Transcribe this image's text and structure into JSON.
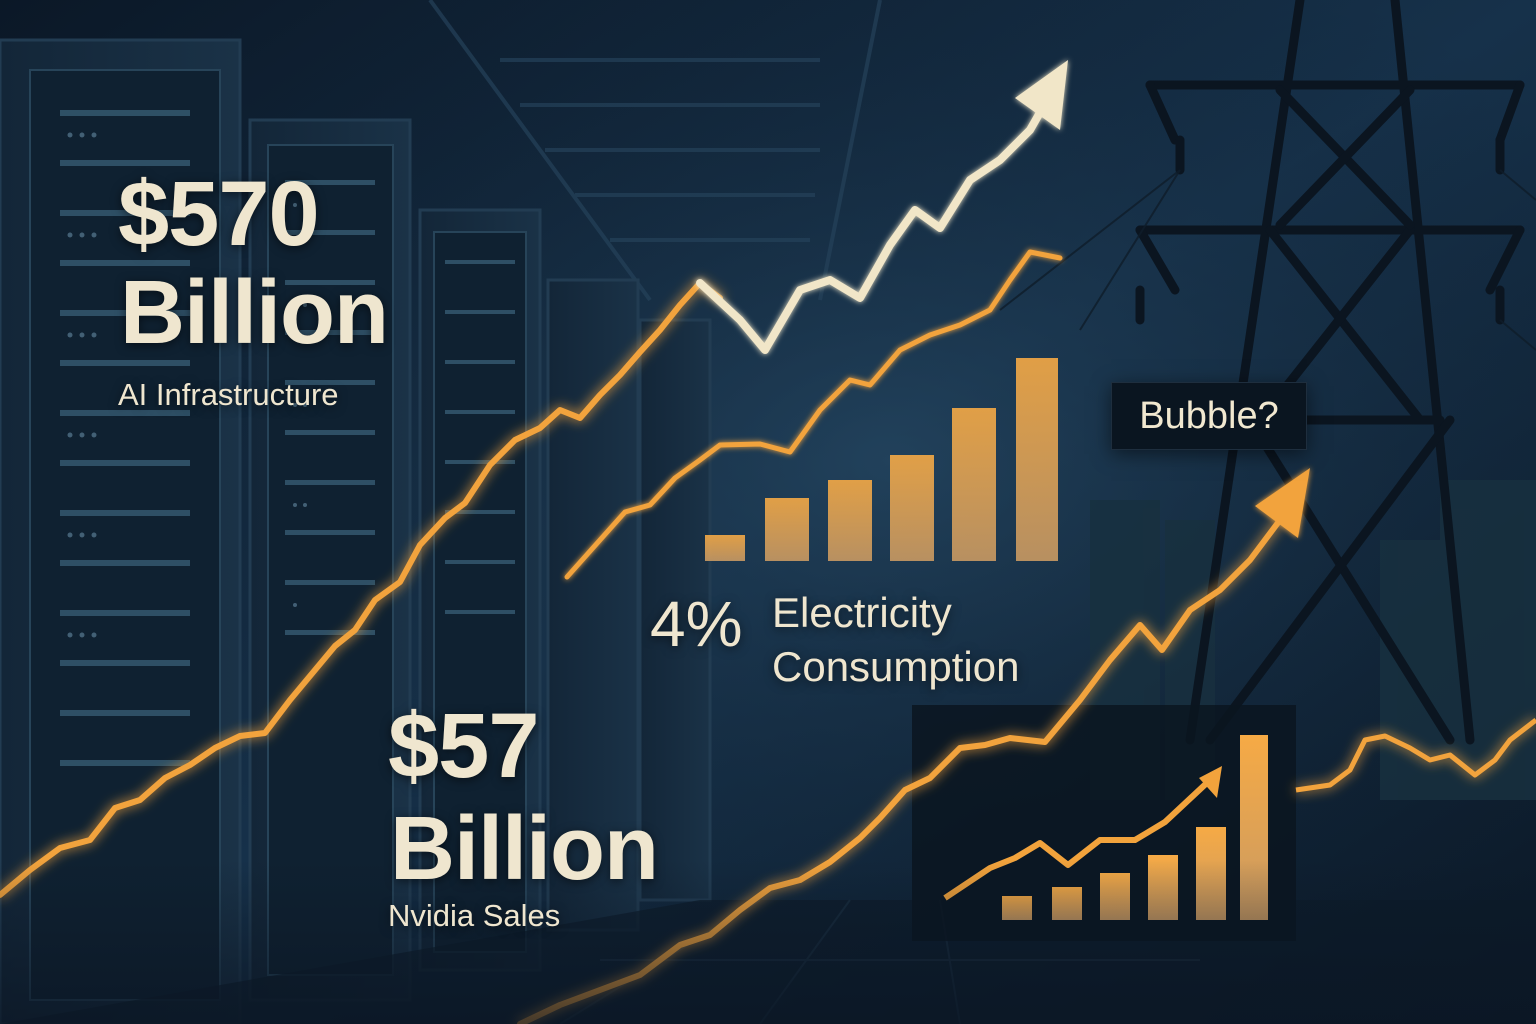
{
  "stats": {
    "ai_infrastructure": {
      "value": "$570",
      "unit": "Billion",
      "label": "AI Infrastructure"
    },
    "nvidia_sales": {
      "value": "$57",
      "unit": "Billion",
      "label": "Nvidia Sales"
    },
    "electricity": {
      "value": "4%",
      "label_line1": "Electricity",
      "label_line2": "Consumption"
    }
  },
  "bubble": {
    "text": "Bubble?"
  },
  "colors": {
    "background": "#0c1b2c",
    "orange": "#f2a33c",
    "cream": "#f1e6c8",
    "text": "#efe6cf",
    "label_box": "#0a1520"
  },
  "icons": [
    "server-rack-icon",
    "power-tower-icon",
    "trend-arrow-icon"
  ]
}
